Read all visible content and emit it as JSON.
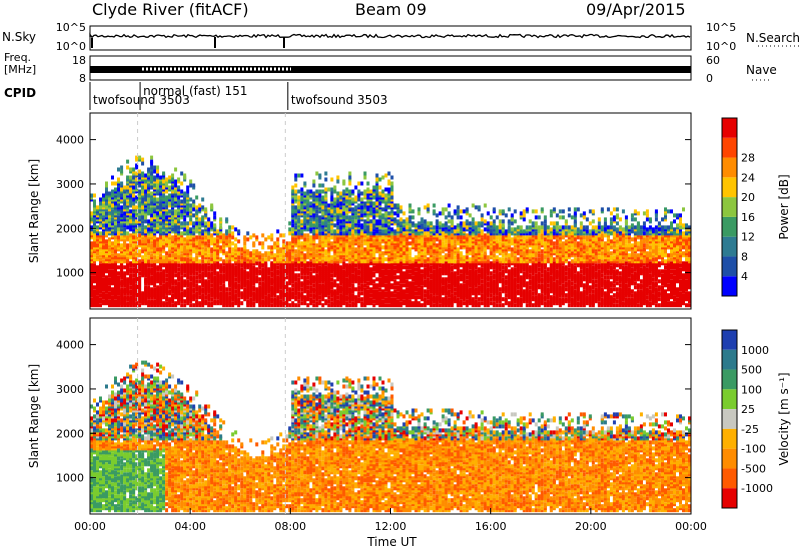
{
  "header": {
    "station": "Clyde River (fitACF)",
    "beam": "Beam 09",
    "date": "09/Apr/2015"
  },
  "noise_panel": {
    "left_label": "N.Sky",
    "right_label": "N.Search",
    "left_ticks": [
      "10^5",
      "10^0"
    ],
    "right_ticks": [
      "10^5",
      "10^0"
    ]
  },
  "freq_panel": {
    "left_label_line1": "Freq.",
    "left_label_line2": "[MHz]",
    "right_label": "Nave",
    "left_ticks": [
      "18",
      "8"
    ],
    "right_ticks": [
      "60",
      "0"
    ]
  },
  "cpid": {
    "label": "CPID",
    "segments": [
      {
        "name": "twofsound 3503",
        "start_hour": 0.0
      },
      {
        "name": "normal (fast) 151",
        "start_hour": 2.0
      },
      {
        "name": "twofsound 3503",
        "start_hour": 7.9
      }
    ]
  },
  "chart_data": [
    {
      "type": "heatmap",
      "quantity": "Power",
      "ylabel": "Slant Range [km]",
      "yticks": [
        1000,
        2000,
        3000,
        4000
      ],
      "ylim": [
        180,
        4600
      ],
      "xlim": [
        0,
        24
      ],
      "colorbar_label": "Power [dB]",
      "colorbar_ticks": [
        "4",
        "8",
        "12",
        "16",
        "20",
        "24",
        "28"
      ],
      "colorbar_colors": [
        "#0000ff",
        "#1e4fa8",
        "#2e7b92",
        "#3a9a63",
        "#8cc63f",
        "#ffc400",
        "#ff8c00",
        "#ff4500",
        "#e60000"
      ]
    },
    {
      "type": "heatmap",
      "quantity": "Velocity",
      "ylabel": "Slant Range [km]",
      "yticks": [
        1000,
        2000,
        3000,
        4000
      ],
      "ylim": [
        180,
        4600
      ],
      "xlim": [
        0,
        24
      ],
      "colorbar_label": "Velocity [m s⁻¹]",
      "colorbar_ticks": [
        "1000",
        "500",
        "100",
        "25",
        "-25",
        "-100",
        "-500",
        "-1000"
      ],
      "colorbar_colors": [
        "#1e3fb0",
        "#2c7a8c",
        "#3a9a63",
        "#7acc2e",
        "#c8c8c0",
        "#ffb000",
        "#ff8c00",
        "#ff5a00",
        "#e60000"
      ]
    }
  ],
  "xaxis": {
    "ticks": [
      "00:00",
      "04:00",
      "08:00",
      "12:00",
      "16:00",
      "20:00",
      "00:00"
    ],
    "label": "Time UT"
  }
}
